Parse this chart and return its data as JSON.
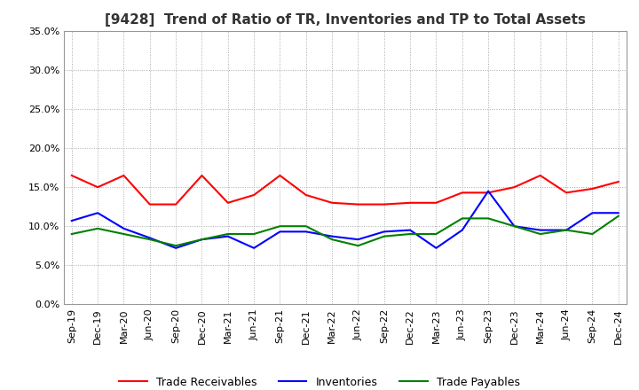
{
  "title": "[9428]  Trend of Ratio of TR, Inventories and TP to Total Assets",
  "x_labels": [
    "Sep-19",
    "Dec-19",
    "Mar-20",
    "Jun-20",
    "Sep-20",
    "Dec-20",
    "Mar-21",
    "Jun-21",
    "Sep-21",
    "Dec-21",
    "Mar-22",
    "Jun-22",
    "Sep-22",
    "Dec-22",
    "Mar-23",
    "Jun-23",
    "Sep-23",
    "Dec-23",
    "Mar-24",
    "Jun-24",
    "Sep-24",
    "Dec-24"
  ],
  "trade_receivables": [
    0.165,
    0.15,
    0.165,
    0.128,
    0.128,
    0.165,
    0.13,
    0.14,
    0.165,
    0.14,
    0.13,
    0.128,
    0.128,
    0.13,
    0.13,
    0.143,
    0.143,
    0.15,
    0.165,
    0.143,
    0.148,
    0.157
  ],
  "inventories": [
    0.107,
    0.117,
    0.097,
    0.085,
    0.072,
    0.083,
    0.087,
    0.072,
    0.093,
    0.093,
    0.087,
    0.083,
    0.093,
    0.095,
    0.072,
    0.095,
    0.145,
    0.1,
    0.095,
    0.095,
    0.117,
    0.117
  ],
  "trade_payables": [
    0.09,
    0.097,
    0.09,
    0.083,
    0.075,
    0.083,
    0.09,
    0.09,
    0.1,
    0.1,
    0.083,
    0.075,
    0.087,
    0.09,
    0.09,
    0.11,
    0.11,
    0.1,
    0.09,
    0.095,
    0.09,
    0.113
  ],
  "ylim": [
    0.0,
    0.35
  ],
  "yticks": [
    0.0,
    0.05,
    0.1,
    0.15,
    0.2,
    0.25,
    0.3,
    0.35
  ],
  "tr_color": "#ff0000",
  "inv_color": "#0000ff",
  "tp_color": "#008000",
  "background_color": "#ffffff",
  "grid_color": "#aaaaaa",
  "title_fontsize": 11,
  "tick_fontsize": 8,
  "legend_labels": [
    "Trade Receivables",
    "Inventories",
    "Trade Payables"
  ]
}
